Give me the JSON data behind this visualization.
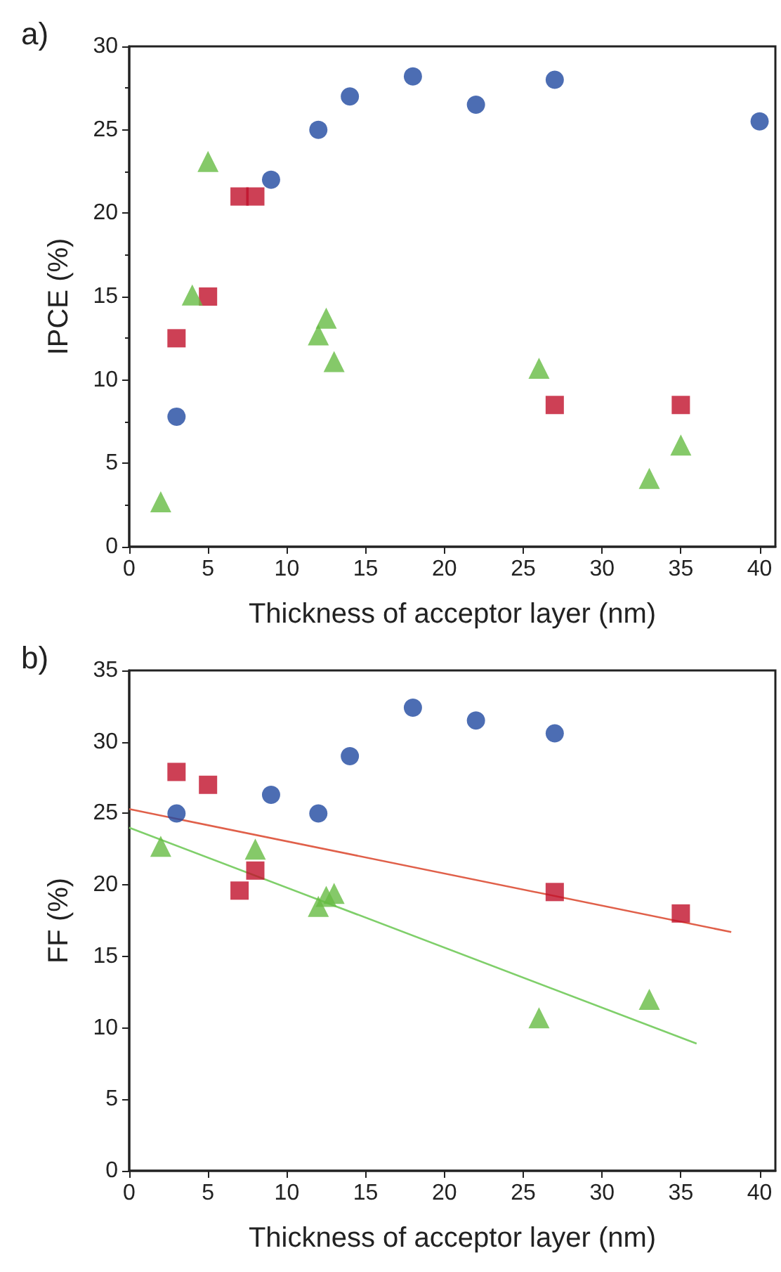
{
  "chart_data": [
    {
      "type": "scatter",
      "title": "a)",
      "xlabel": "Thickness of acceptor layer (nm)",
      "ylabel": "IPCE (%)",
      "xlim": [
        0,
        41
      ],
      "xticks": [
        0,
        5,
        10,
        15,
        20,
        25,
        30,
        35,
        40
      ],
      "ylim": [
        0,
        30
      ],
      "yticks": [
        0,
        5,
        10,
        15,
        20,
        25,
        30
      ],
      "grid": false,
      "series": [
        {
          "color": "#1f49a0",
          "marker": "circle",
          "x": [
            3,
            9,
            12,
            14,
            18,
            22,
            27,
            40
          ],
          "values": [
            7.8,
            22,
            25,
            27,
            28.2,
            26.5,
            28,
            25.5
          ]
        },
        {
          "color": "#c0102a",
          "marker": "square",
          "x": [
            3,
            5,
            7,
            8,
            27,
            35
          ],
          "values": [
            12.5,
            15,
            21,
            21,
            8.5,
            8.5
          ]
        },
        {
          "color": "#66bb44",
          "marker": "triangle",
          "x": [
            2,
            4,
            5,
            12,
            12.5,
            13,
            26,
            33,
            35
          ],
          "values": [
            2.7,
            15.1,
            23.1,
            12.7,
            13.7,
            11.1,
            10.7,
            4.1,
            6.1
          ]
        }
      ]
    },
    {
      "type": "scatter",
      "title": "b)",
      "xlabel": "Thickness of acceptor layer (nm)",
      "ylabel": "FF (%)",
      "xlim": [
        0,
        41
      ],
      "xticks": [
        0,
        5,
        10,
        15,
        20,
        25,
        30,
        35,
        40
      ],
      "ylim": [
        0,
        35
      ],
      "yticks": [
        0,
        5,
        10,
        15,
        20,
        25,
        30,
        35
      ],
      "grid": false,
      "series": [
        {
          "color": "#1f49a0",
          "marker": "circle",
          "x": [
            3,
            9,
            12,
            14,
            18,
            22,
            27
          ],
          "values": [
            25,
            26.3,
            25,
            29,
            32.4,
            31.5,
            30.6
          ]
        },
        {
          "color": "#c0102a",
          "marker": "square",
          "x": [
            3,
            5,
            7,
            8,
            27,
            35
          ],
          "values": [
            27.9,
            27,
            19.6,
            21,
            19.5,
            18
          ]
        },
        {
          "color": "#66bb44",
          "marker": "triangle",
          "x": [
            2,
            8,
            12,
            12.5,
            13,
            26,
            33
          ],
          "values": [
            22.7,
            22.5,
            18.5,
            19.2,
            19.4,
            10.7,
            12
          ]
        },
        {
          "type": "line",
          "color": "#e0604a",
          "marker": "none",
          "line_style": "solid",
          "x": [
            0,
            38.2
          ],
          "values": [
            25.3,
            16.7
          ]
        },
        {
          "type": "line",
          "color": "#7fcf6a",
          "marker": "none",
          "line_style": "solid",
          "x": [
            0,
            36
          ],
          "values": [
            24,
            8.9
          ]
        }
      ]
    }
  ]
}
